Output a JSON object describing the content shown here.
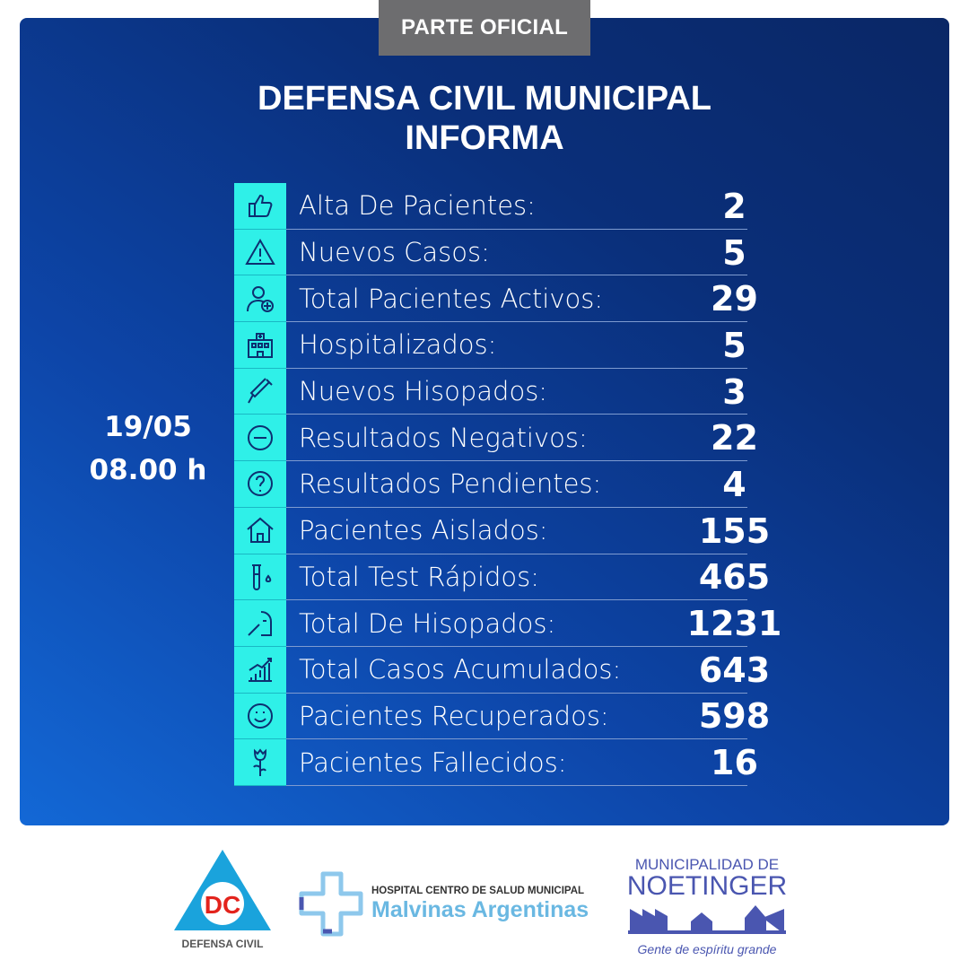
{
  "badge": "PARTE OFICIAL",
  "title": {
    "line1": "DEFENSA CIVIL MUNICIPAL",
    "line2": "INFORMA"
  },
  "date": {
    "day": "19/05",
    "time": "08.00 h"
  },
  "colors": {
    "card_dark": "#0a2766",
    "card_light": "#1368d6",
    "icon_column": "#2ff0e8",
    "badge": "#6d6d6f"
  },
  "rows": [
    {
      "icon": "thumbs-up-icon",
      "label": "Alta De Pacientes:",
      "value": "2"
    },
    {
      "icon": "warning-icon",
      "label": "Nuevos Casos:",
      "value": "5"
    },
    {
      "icon": "patient-plus-icon",
      "label": "Total Pacientes Activos:",
      "value": "29"
    },
    {
      "icon": "hospital-icon",
      "label": "Hospitalizados:",
      "value": "5"
    },
    {
      "icon": "swab-icon",
      "label": "Nuevos Hisopados:",
      "value": "3"
    },
    {
      "icon": "minus-circle-icon",
      "label": "Resultados Negativos:",
      "value": "22"
    },
    {
      "icon": "question-circle-icon",
      "label": "Resultados Pendientes:",
      "value": "4"
    },
    {
      "icon": "house-icon",
      "label": "Pacientes Aislados:",
      "value": "155"
    },
    {
      "icon": "test-tube-icon",
      "label": "Total Test Rápidos:",
      "value": "465"
    },
    {
      "icon": "nasal-swab-icon",
      "label": "Total De Hisopados:",
      "value": "1231"
    },
    {
      "icon": "chart-up-icon",
      "label": "Total Casos Acumulados:",
      "value": "643"
    },
    {
      "icon": "smile-icon",
      "label": "Pacientes Recuperados:",
      "value": "598"
    },
    {
      "icon": "rose-icon",
      "label": "Pacientes Fallecidos:",
      "value": "16"
    }
  ],
  "logos": {
    "defensa_civil": {
      "mark": "DC",
      "name": "DEFENSA CIVIL"
    },
    "hospital": {
      "line1": "HOSPITAL CENTRO DE SALUD MUNICIPAL",
      "line2": "Malvinas Argentinas"
    },
    "municipio": {
      "line1": "MUNICIPALIDAD DE",
      "line2": "NOETINGER",
      "slogan": "Gente de espíritu grande"
    }
  }
}
